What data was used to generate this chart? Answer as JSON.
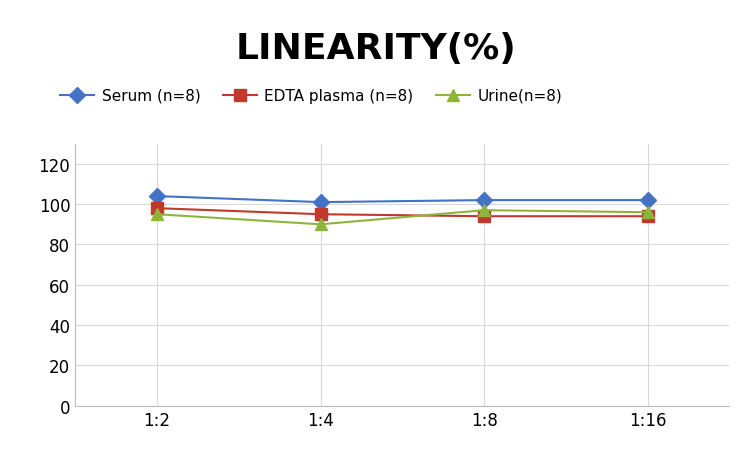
{
  "title": "LINEARITY(%)",
  "x_labels": [
    "1:2",
    "1:4",
    "1:8",
    "1:16"
  ],
  "x_positions": [
    0,
    1,
    2,
    3
  ],
  "series": [
    {
      "label": "Serum (n=8)",
      "values": [
        104,
        101,
        102,
        102
      ],
      "color": "#4472C4",
      "marker": "D",
      "marker_color": "#4472C4",
      "linewidth": 1.5
    },
    {
      "label": "EDTA plasma (n=8)",
      "values": [
        98,
        95,
        94,
        94
      ],
      "color": "#C0392B",
      "marker": "s",
      "marker_color": "#C0392B",
      "linewidth": 1.5
    },
    {
      "label": "Urine(n=8)",
      "values": [
        95,
        90,
        97,
        96
      ],
      "color": "#8DB53C",
      "marker": "^",
      "marker_color": "#8DB53C",
      "linewidth": 1.5
    }
  ],
  "ylim": [
    0,
    130
  ],
  "yticks": [
    0,
    20,
    40,
    60,
    80,
    100,
    120
  ],
  "background_color": "#FFFFFF",
  "grid_color": "#D9D9D9",
  "title_fontsize": 26,
  "legend_fontsize": 11,
  "tick_fontsize": 12,
  "marker_size": 8
}
